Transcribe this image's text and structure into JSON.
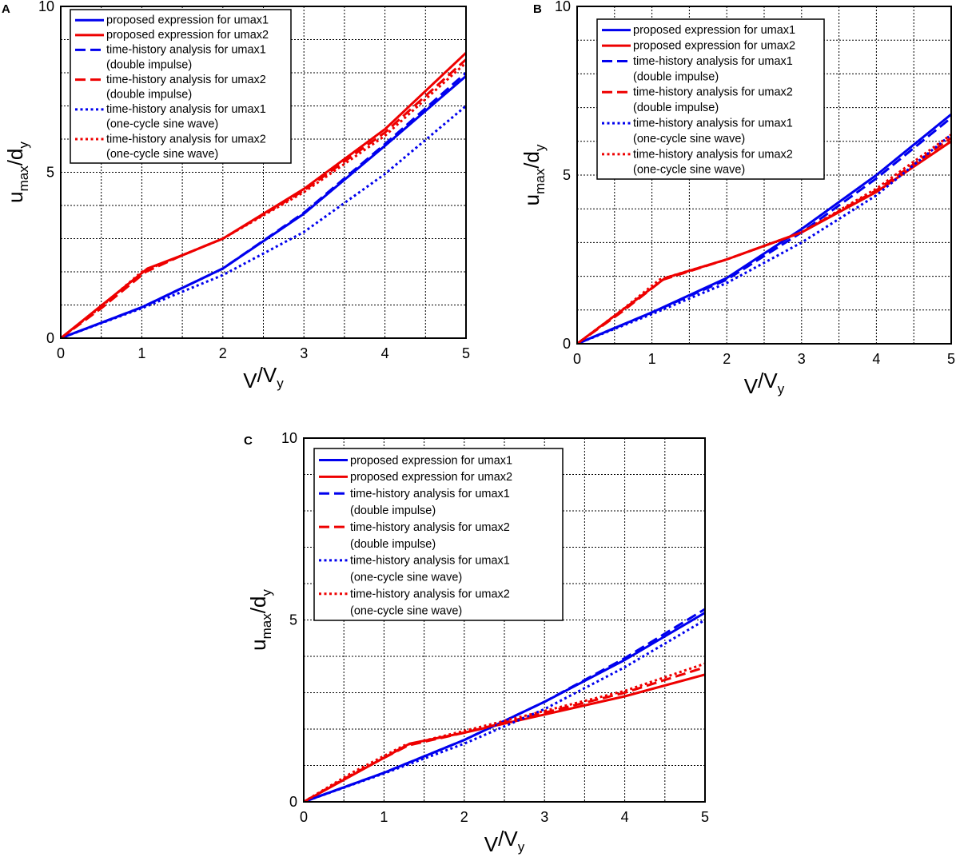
{
  "chart_data": [
    {
      "panel": "A",
      "type": "line",
      "xlabel": "V/V_y",
      "ylabel": "u_max/d_y",
      "xlim": [
        0,
        5
      ],
      "ylim": [
        0,
        10
      ],
      "xticks": [
        "0",
        "1",
        "2",
        "3",
        "4",
        "5"
      ],
      "yticks": [
        "0",
        "5",
        "10"
      ],
      "grid": true,
      "legend_position": "top-left",
      "series": [
        {
          "name": "proposed expression for umax1",
          "color": "#0000ee",
          "style": "solid",
          "x": [
            0,
            1,
            2,
            3,
            4,
            5
          ],
          "y": [
            0,
            0.93,
            2.1,
            3.75,
            5.8,
            7.9
          ]
        },
        {
          "name": "proposed expression for umax2",
          "color": "#ee0000",
          "style": "solid",
          "x": [
            0,
            1.07,
            1.5,
            2,
            3,
            4,
            5
          ],
          "y": [
            0,
            2.1,
            2.5,
            3.0,
            4.5,
            6.3,
            8.6
          ]
        },
        {
          "name": "time-history analysis for umax1\n(double impulse)",
          "color": "#0000ee",
          "style": "dashed",
          "x": [
            0,
            1,
            2,
            3,
            4,
            5
          ],
          "y": [
            0,
            0.93,
            2.1,
            3.78,
            5.85,
            8.0
          ]
        },
        {
          "name": "time-history analysis for umax2\n(double impulse)",
          "color": "#ee0000",
          "style": "dashed",
          "x": [
            0,
            0.5,
            1.05,
            1.5,
            2,
            3,
            4,
            5
          ],
          "y": [
            0,
            0.9,
            2.0,
            2.5,
            3.0,
            4.45,
            6.2,
            8.4
          ]
        },
        {
          "name": "time-history analysis for umax1\n(one-cycle sine wave)",
          "color": "#0000ee",
          "style": "dotted",
          "x": [
            0,
            1,
            2,
            3,
            4,
            5
          ],
          "y": [
            0,
            0.9,
            1.9,
            3.2,
            4.95,
            7.0
          ]
        },
        {
          "name": "time-history analysis for umax2\n(one-cycle sine wave)",
          "color": "#ee0000",
          "style": "dotted",
          "x": [
            0,
            0.5,
            1,
            1.5,
            2,
            3,
            4,
            5
          ],
          "y": [
            0,
            0.95,
            2.0,
            2.5,
            3.0,
            4.4,
            6.1,
            8.3
          ]
        }
      ]
    },
    {
      "panel": "B",
      "type": "line",
      "xlabel": "V/V_y",
      "ylabel": "u_max/d_y",
      "xlim": [
        0,
        5
      ],
      "ylim": [
        0,
        10
      ],
      "xticks": [
        "0",
        "1",
        "2",
        "3",
        "4",
        "5"
      ],
      "yticks": [
        "0",
        "5",
        "10"
      ],
      "grid": true,
      "legend_position": "top-left",
      "series": [
        {
          "name": "proposed expression for umax1",
          "color": "#0000ee",
          "style": "solid",
          "x": [
            0,
            1,
            2,
            3,
            4,
            5
          ],
          "y": [
            0,
            0.93,
            1.95,
            3.4,
            5.0,
            6.8
          ]
        },
        {
          "name": "proposed expression for umax2",
          "color": "#ee0000",
          "style": "solid",
          "x": [
            0,
            1.18,
            2,
            3,
            4,
            5
          ],
          "y": [
            0,
            1.95,
            2.5,
            3.3,
            4.5,
            6.0
          ]
        },
        {
          "name": "time-history analysis for umax1\n(double impulse)",
          "color": "#0000ee",
          "style": "dashed",
          "x": [
            0,
            1,
            2,
            3,
            4,
            5
          ],
          "y": [
            0,
            0.93,
            1.9,
            3.3,
            4.9,
            6.7
          ]
        },
        {
          "name": "time-history analysis for umax2\n(double impulse)",
          "color": "#ee0000",
          "style": "dashed",
          "x": [
            0,
            0.6,
            1.15,
            2,
            3,
            4,
            5
          ],
          "y": [
            0,
            0.95,
            1.9,
            2.5,
            3.3,
            4.55,
            6.1
          ]
        },
        {
          "name": "time-history analysis for umax1\n(one-cycle sine wave)",
          "color": "#0000ee",
          "style": "dotted",
          "x": [
            0,
            1,
            2,
            3,
            4,
            5
          ],
          "y": [
            0,
            0.88,
            1.8,
            3.0,
            4.4,
            6.2
          ]
        },
        {
          "name": "time-history analysis for umax2\n(one-cycle sine wave)",
          "color": "#ee0000",
          "style": "dotted",
          "x": [
            0,
            0.6,
            1.1,
            2,
            3,
            4,
            5
          ],
          "y": [
            0,
            1.0,
            1.9,
            2.5,
            3.3,
            4.6,
            6.2
          ]
        }
      ]
    },
    {
      "panel": "C",
      "type": "line",
      "xlabel": "V/V_y",
      "ylabel": "u_max/d_y",
      "xlim": [
        0,
        5
      ],
      "ylim": [
        0,
        10
      ],
      "xticks": [
        "0",
        "1",
        "2",
        "3",
        "4",
        "5"
      ],
      "yticks": [
        "0",
        "5",
        "10"
      ],
      "grid": true,
      "legend_position": "top-left",
      "series": [
        {
          "name": "proposed expression for umax1",
          "color": "#0000ee",
          "style": "solid",
          "x": [
            0,
            1,
            2,
            3,
            4,
            5
          ],
          "y": [
            0,
            0.8,
            1.7,
            2.75,
            3.9,
            5.2
          ]
        },
        {
          "name": "proposed expression for umax2",
          "color": "#ee0000",
          "style": "solid",
          "x": [
            0,
            1.32,
            2,
            3,
            4,
            5
          ],
          "y": [
            0,
            1.6,
            1.9,
            2.4,
            2.9,
            3.5
          ]
        },
        {
          "name": "time-history analysis for umax1\n(double impulse)",
          "color": "#0000ee",
          "style": "dashed",
          "x": [
            0,
            1,
            2,
            3,
            4,
            5
          ],
          "y": [
            0,
            0.8,
            1.7,
            2.75,
            3.95,
            5.3
          ]
        },
        {
          "name": "time-history analysis for umax2\n(double impulse)",
          "color": "#ee0000",
          "style": "dashed",
          "x": [
            0,
            0.6,
            1.3,
            2,
            3,
            4,
            5
          ],
          "y": [
            0,
            0.75,
            1.55,
            1.9,
            2.45,
            3.0,
            3.7
          ]
        },
        {
          "name": "time-history analysis for umax1\n(one-cycle sine wave)",
          "color": "#0000ee",
          "style": "dotted",
          "x": [
            0,
            1,
            2,
            3,
            4,
            5
          ],
          "y": [
            0,
            0.78,
            1.6,
            2.55,
            3.7,
            5.0
          ]
        },
        {
          "name": "time-history analysis for umax2\n(one-cycle sine wave)",
          "color": "#ee0000",
          "style": "dotted",
          "x": [
            0,
            0.6,
            1.25,
            2,
            3,
            4,
            5
          ],
          "y": [
            0,
            0.8,
            1.55,
            1.95,
            2.5,
            3.05,
            3.8
          ]
        }
      ]
    }
  ]
}
